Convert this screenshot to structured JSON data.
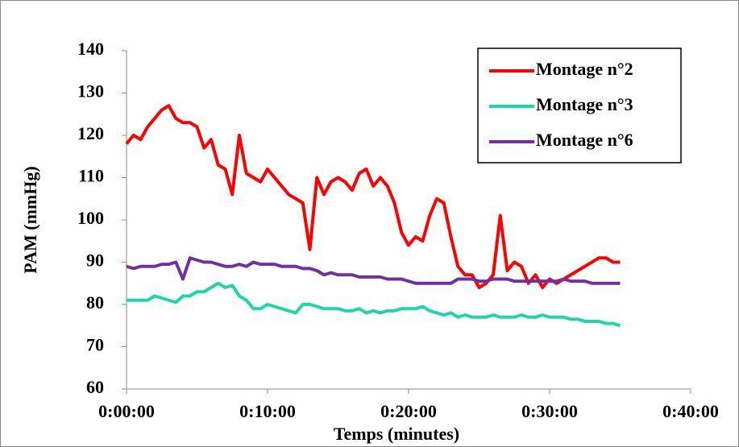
{
  "chart_data": {
    "type": "line",
    "xlabel": "Temps (minutes)",
    "ylabel": "PAM (mmHg)",
    "x": [
      0,
      0.5,
      1,
      1.5,
      2,
      2.5,
      3,
      3.5,
      4,
      4.5,
      5,
      5.5,
      6,
      6.5,
      7,
      7.5,
      8,
      8.5,
      9,
      9.5,
      10,
      10.5,
      11,
      11.5,
      12,
      12.5,
      13,
      13.5,
      14,
      14.5,
      15,
      15.5,
      16,
      16.5,
      17,
      17.5,
      18,
      18.5,
      19,
      19.5,
      20,
      20.5,
      21,
      21.5,
      22,
      22.5,
      23,
      23.5,
      24,
      24.5,
      25,
      25.5,
      26,
      26.5,
      27,
      27.5,
      28,
      28.5,
      29,
      29.5,
      30,
      30.5,
      31,
      31.5,
      32,
      32.5,
      33,
      33.5,
      34,
      34.5,
      35
    ],
    "series": [
      {
        "name": "Montage n°2",
        "color": "#ff0000",
        "values": [
          118,
          120,
          119,
          122,
          124,
          126,
          127,
          124,
          123,
          123,
          122,
          117,
          119,
          113,
          112,
          106,
          120,
          111,
          110,
          109,
          112,
          110,
          108,
          106,
          105,
          104,
          93,
          110,
          106,
          109,
          110,
          109,
          107,
          111,
          112,
          108,
          110,
          108,
          104,
          97,
          94,
          96,
          95,
          101,
          105,
          104,
          96,
          89,
          87,
          87,
          84,
          85,
          87,
          101,
          88,
          90,
          89,
          85,
          87,
          84,
          86,
          85,
          86,
          87,
          88,
          89,
          90,
          91,
          91,
          90,
          90
        ]
      },
      {
        "name": "Montage n°3",
        "color": "#1fd6a8",
        "values": [
          81,
          81,
          81,
          81,
          82,
          81.5,
          81,
          80.5,
          82,
          82,
          83,
          83,
          84,
          85,
          84,
          84.5,
          82,
          81,
          79,
          79,
          80,
          79.5,
          79,
          78.5,
          78,
          80,
          80,
          79.5,
          79,
          79,
          79,
          78.5,
          78.5,
          79,
          78,
          78.5,
          78,
          78.5,
          78.5,
          79,
          79,
          79,
          79.5,
          78.5,
          78,
          77.5,
          78,
          77,
          77.5,
          77,
          77,
          77,
          77.5,
          77,
          77,
          77,
          77.5,
          77,
          77,
          77.5,
          77,
          77,
          77,
          76.5,
          76.5,
          76,
          76,
          76,
          75.5,
          75.5,
          75
        ]
      },
      {
        "name": "Montage n°6",
        "color": "#7030a0",
        "values": [
          89,
          88.5,
          89,
          89,
          89,
          89.5,
          89.5,
          90,
          86,
          91,
          90.5,
          90,
          90,
          89.5,
          89,
          89,
          89.5,
          89,
          90,
          89.5,
          89.5,
          89.5,
          89,
          89,
          89,
          88.5,
          88.5,
          88,
          87,
          87.5,
          87,
          87,
          87,
          86.5,
          86.5,
          86.5,
          86.5,
          86,
          86,
          86,
          85.5,
          85,
          85,
          85,
          85,
          85,
          85,
          86,
          86,
          86,
          85.5,
          85.5,
          86,
          86,
          86,
          85.5,
          85.5,
          85.5,
          85.5,
          85.5,
          85.5,
          85.5,
          86,
          85.5,
          85.5,
          85.5,
          85,
          85,
          85,
          85,
          85
        ]
      }
    ],
    "xlim": [
      0,
      40
    ],
    "xticks": [
      {
        "value": 0,
        "label": "0:00:00"
      },
      {
        "value": 10,
        "label": "0:10:00"
      },
      {
        "value": 20,
        "label": "0:20:00"
      },
      {
        "value": 30,
        "label": "0:30:00"
      },
      {
        "value": 40,
        "label": "0:40:00"
      }
    ],
    "ylim": [
      60,
      140
    ],
    "yticks": [
      60,
      70,
      80,
      90,
      100,
      110,
      120,
      130,
      140
    ],
    "legend": "upper right"
  }
}
